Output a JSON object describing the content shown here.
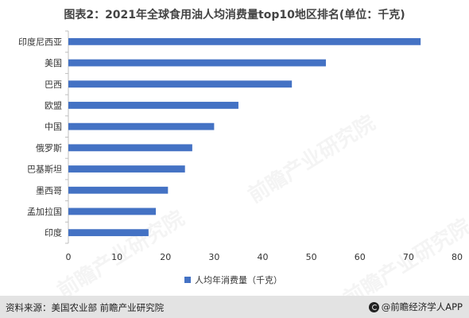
{
  "title": "图表2：2021年全球食用油人均消费量top10地区排名(单位：千克)",
  "footer": {
    "source": "资料来源：美国农业部 前瞻产业研究院",
    "brand": "@前瞻经济学人APP"
  },
  "watermark": "前瞻产业研究院",
  "colors": {
    "bar": "#4472c4",
    "axis": "#bfbfbf",
    "text": "#333333"
  },
  "chart_data": {
    "type": "bar",
    "orientation": "horizontal",
    "categories": [
      "印度尼西亚",
      "美国",
      "巴西",
      "欧盟",
      "中国",
      "俄罗斯",
      "巴基斯坦",
      "墨西哥",
      "孟加拉国",
      "印度"
    ],
    "series": [
      {
        "name": "人均年消费量（千克）",
        "values": [
          72.5,
          53,
          46,
          35,
          30,
          25.5,
          24,
          20.5,
          18,
          16.5
        ]
      }
    ],
    "xlim": [
      0,
      80
    ],
    "xticks": [
      0,
      10,
      20,
      30,
      40,
      50,
      60,
      70,
      80
    ],
    "grid": false,
    "legend_position": "bottom"
  }
}
